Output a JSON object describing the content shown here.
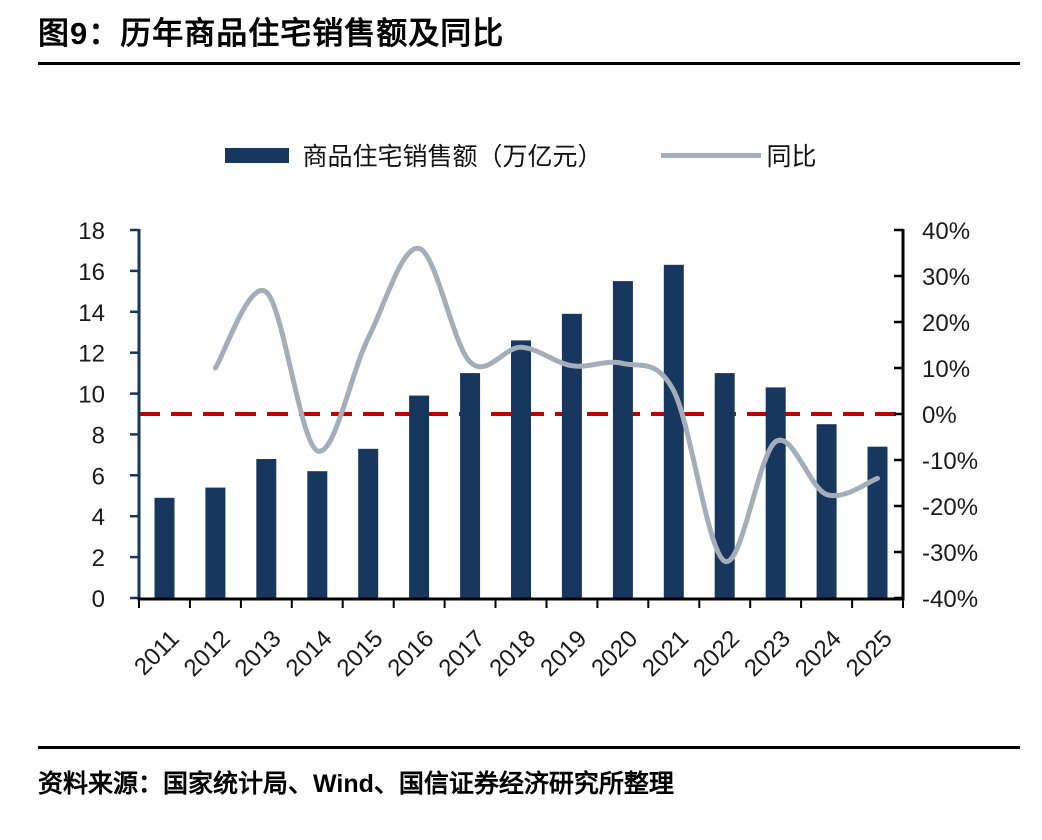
{
  "header": {
    "title": "图9：历年商品住宅销售额及同比"
  },
  "legend": {
    "items": [
      {
        "label": "商品住宅销售额（万亿元）",
        "marker": "bar",
        "color": "#17375E"
      },
      {
        "label": "同比",
        "marker": "line",
        "color": "#A4AEBA"
      }
    ]
  },
  "footer": {
    "source": "资料来源：国家统计局、Wind、国信证券经济研究所整理"
  },
  "colors": {
    "bar": "#17375E",
    "line": "#A4AEBA",
    "reference_line": "#C00000",
    "axis_left": "#17375E",
    "axis_right": "#000000",
    "axis_bottom": "#000000",
    "label_text": "#1a1a1a"
  },
  "chart_data": {
    "type": "bar",
    "subtype": "bar+line combo, dual axis",
    "title": "历年商品住宅销售额及同比",
    "categories": [
      "2011",
      "2012",
      "2013",
      "2014",
      "2015",
      "2016",
      "2017",
      "2018",
      "2019",
      "2020",
      "2021",
      "2022",
      "2023",
      "2024",
      "2025"
    ],
    "series": [
      {
        "name": "商品住宅销售额（万亿元）",
        "type": "bar",
        "axis": "left",
        "color": "#17375E",
        "values": [
          4.9,
          5.4,
          6.8,
          6.2,
          7.3,
          9.9,
          11.0,
          12.6,
          13.9,
          15.5,
          16.3,
          11.0,
          10.3,
          8.5,
          7.4
        ]
      },
      {
        "name": "同比",
        "type": "line",
        "axis": "right",
        "color": "#A4AEBA",
        "values": [
          null,
          10,
          26.5,
          -8,
          16.5,
          36,
          11.3,
          14.5,
          10.5,
          11,
          5,
          -32,
          -6,
          -17.5,
          -14
        ]
      }
    ],
    "left_axis": {
      "min": 0,
      "max": 18,
      "step": 2,
      "tick_labels_top_to_bottom": [
        "18",
        "16",
        "14",
        "12",
        "10",
        "8",
        "6",
        "4",
        "2",
        "0"
      ]
    },
    "right_axis": {
      "min": -40,
      "max": 40,
      "step": 10,
      "unit": "%",
      "tick_labels_top_to_bottom": [
        "40%",
        "30%",
        "20%",
        "10%",
        "0%",
        "-10%",
        "-20%",
        "-30%",
        "-40%"
      ]
    },
    "reference_line": {
      "axis": "right",
      "value": 0,
      "style": "dashed",
      "color": "#C00000"
    },
    "grid": false,
    "legend_position": "top-center",
    "x_label_rotation_deg": 45
  }
}
